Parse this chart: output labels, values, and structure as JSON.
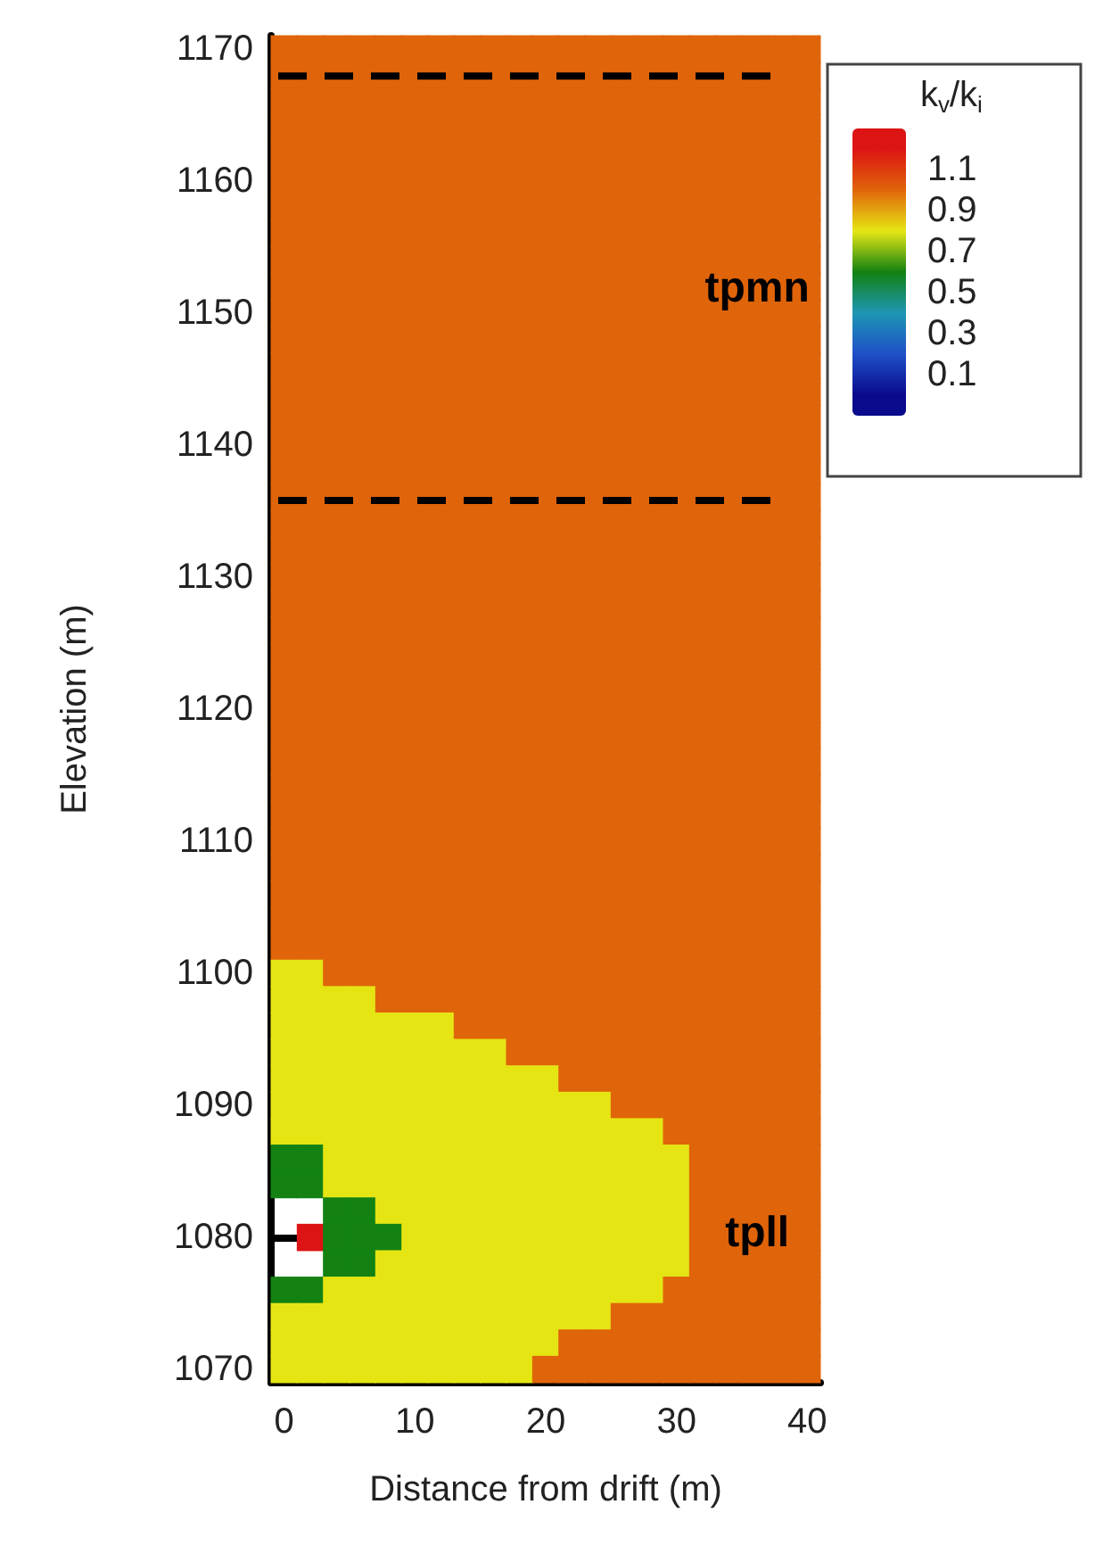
{
  "chart_data": {
    "type": "heatmap",
    "xlabel": "Distance from drift (m)",
    "ylabel": "Elevation (m)",
    "clabel": "k$_{v}$/k$_{i}$",
    "categories": [
      "0",
      null,
      null,
      null,
      null,
      "10",
      null,
      null,
      null,
      null,
      "20",
      null,
      null,
      null,
      null,
      "30",
      null,
      null,
      null,
      null,
      "40"
    ],
    "y_categories": [
      "1170",
      null,
      null,
      null,
      null,
      "1160",
      null,
      null,
      null,
      null,
      "1150",
      null,
      null,
      null,
      null,
      "1140",
      null,
      null,
      null,
      null,
      "1130",
      null,
      null,
      null,
      null,
      "1120",
      null,
      null,
      null,
      null,
      "1110",
      null,
      null,
      null,
      null,
      "1100",
      null,
      null,
      null,
      null,
      "1090",
      null,
      null,
      null,
      null,
      "1080",
      null,
      null,
      null,
      null,
      "1070"
    ],
    "cticks": [
      0.1,
      0.3,
      0.5,
      0.7,
      0.9,
      1.1
    ],
    "colors": [
      "#0a0a8c",
      "#1e50c8",
      "#1e96b4",
      "#128212",
      "#e6e614",
      "#e0640a",
      "#dc1414"
    ],
    "cells": [
      [
        1,
        1,
        1,
        1,
        1,
        1,
        1,
        1,
        1,
        1,
        1,
        1,
        1,
        1,
        1,
        1,
        1,
        1,
        1,
        1,
        1
      ],
      [
        1,
        1,
        1,
        1,
        1,
        1,
        1,
        1,
        1,
        1,
        1,
        1,
        1,
        1,
        1,
        1,
        1,
        1,
        1,
        1,
        1
      ],
      [
        1,
        1,
        1,
        1,
        1,
        1,
        1,
        1,
        1,
        1,
        1,
        1,
        1,
        1,
        1,
        1,
        1,
        1,
        1,
        1,
        1
      ],
      [
        1,
        1,
        1,
        1,
        1,
        1,
        1,
        1,
        1,
        1,
        1,
        1,
        1,
        1,
        1,
        1,
        1,
        1,
        1,
        1,
        1
      ],
      [
        1,
        1,
        1,
        1,
        1,
        1,
        1,
        1,
        1,
        1,
        1,
        1,
        1,
        1,
        1,
        1,
        1,
        1,
        1,
        1,
        1
      ],
      [
        1,
        1,
        1,
        1,
        1,
        1,
        1,
        1,
        1,
        1,
        1,
        1,
        1,
        1,
        1,
        1,
        1,
        1,
        1,
        1,
        1
      ],
      [
        1,
        1,
        1,
        1,
        1,
        1,
        1,
        1,
        1,
        1,
        1,
        1,
        1,
        1,
        1,
        1,
        1,
        1,
        1,
        1,
        1
      ],
      [
        1,
        1,
        1,
        1,
        1,
        1,
        1,
        1,
        1,
        1,
        1,
        1,
        1,
        1,
        1,
        1,
        1,
        1,
        1,
        1,
        1
      ],
      [
        1,
        1,
        1,
        1,
        1,
        1,
        1,
        1,
        1,
        1,
        1,
        1,
        1,
        1,
        1,
        1,
        1,
        1,
        1,
        1,
        1
      ],
      [
        1,
        1,
        1,
        1,
        1,
        1,
        1,
        1,
        1,
        1,
        1,
        1,
        1,
        1,
        1,
        1,
        1,
        1,
        1,
        1,
        1
      ],
      [
        1,
        1,
        1,
        1,
        1,
        1,
        1,
        1,
        1,
        1,
        1,
        1,
        1,
        1,
        1,
        1,
        1,
        1,
        1,
        1,
        1
      ],
      [
        1,
        1,
        1,
        1,
        1,
        1,
        1,
        1,
        1,
        1,
        1,
        1,
        1,
        1,
        1,
        1,
        1,
        1,
        1,
        1,
        1
      ],
      [
        1,
        1,
        1,
        1,
        1,
        1,
        1,
        1,
        1,
        1,
        1,
        1,
        1,
        1,
        1,
        1,
        1,
        1,
        1,
        1,
        1
      ],
      [
        1,
        1,
        1,
        1,
        1,
        1,
        1,
        1,
        1,
        1,
        1,
        1,
        1,
        1,
        1,
        1,
        1,
        1,
        1,
        1,
        1
      ],
      [
        1,
        1,
        1,
        1,
        1,
        1,
        1,
        1,
        1,
        1,
        1,
        1,
        1,
        1,
        1,
        1,
        1,
        1,
        1,
        1,
        1
      ],
      [
        1,
        1,
        1,
        1,
        1,
        1,
        1,
        1,
        1,
        1,
        1,
        1,
        1,
        1,
        1,
        1,
        1,
        1,
        1,
        1,
        1
      ],
      [
        1,
        1,
        1,
        1,
        1,
        1,
        1,
        1,
        1,
        1,
        1,
        1,
        1,
        1,
        1,
        1,
        1,
        1,
        1,
        1,
        1
      ],
      [
        1,
        1,
        1,
        1,
        1,
        1,
        1,
        1,
        1,
        1,
        1,
        1,
        1,
        1,
        1,
        1,
        1,
        1,
        1,
        1,
        1
      ],
      [
        1,
        1,
        1,
        1,
        1,
        1,
        1,
        1,
        1,
        1,
        1,
        1,
        1,
        1,
        1,
        1,
        1,
        1,
        1,
        1,
        1
      ],
      [
        1,
        1,
        1,
        1,
        1,
        1,
        1,
        1,
        1,
        1,
        1,
        1,
        1,
        1,
        1,
        1,
        1,
        1,
        1,
        1,
        1
      ],
      [
        1,
        1,
        1,
        1,
        1,
        1,
        1,
        1,
        1,
        1,
        1,
        1,
        1,
        1,
        1,
        1,
        1,
        1,
        1,
        1,
        1
      ],
      [
        1,
        1,
        1,
        1,
        1,
        1,
        1,
        1,
        1,
        1,
        1,
        1,
        1,
        1,
        1,
        1,
        1,
        1,
        1,
        1,
        1
      ],
      [
        1,
        1,
        1,
        1,
        1,
        1,
        1,
        1,
        1,
        1,
        1,
        1,
        1,
        1,
        1,
        1,
        1,
        1,
        1,
        1,
        1
      ],
      [
        1,
        1,
        1,
        1,
        1,
        1,
        1,
        1,
        1,
        1,
        1,
        1,
        1,
        1,
        1,
        1,
        1,
        1,
        1,
        1,
        1
      ],
      [
        1,
        1,
        1,
        1,
        1,
        1,
        1,
        1,
        1,
        1,
        1,
        1,
        1,
        1,
        1,
        1,
        1,
        1,
        1,
        1,
        1
      ],
      [
        1,
        1,
        1,
        1,
        1,
        1,
        1,
        1,
        1,
        1,
        1,
        1,
        1,
        1,
        1,
        1,
        1,
        1,
        1,
        1,
        1
      ],
      [
        1,
        1,
        1,
        1,
        1,
        1,
        1,
        1,
        1,
        1,
        1,
        1,
        1,
        1,
        1,
        1,
        1,
        1,
        1,
        1,
        1
      ],
      [
        1,
        1,
        1,
        1,
        1,
        1,
        1,
        1,
        1,
        1,
        1,
        1,
        1,
        1,
        1,
        1,
        1,
        1,
        1,
        1,
        1
      ],
      [
        1,
        1,
        1,
        1,
        1,
        1,
        1,
        1,
        1,
        1,
        1,
        1,
        1,
        1,
        1,
        1,
        1,
        1,
        1,
        1,
        1
      ],
      [
        1,
        1,
        1,
        1,
        1,
        1,
        1,
        1,
        1,
        1,
        1,
        1,
        1,
        1,
        1,
        1,
        1,
        1,
        1,
        1,
        1
      ],
      [
        1,
        1,
        1,
        1,
        1,
        1,
        1,
        1,
        1,
        1,
        1,
        1,
        1,
        1,
        1,
        1,
        1,
        1,
        1,
        1,
        1
      ],
      [
        1,
        1,
        1,
        1,
        1,
        1,
        1,
        1,
        1,
        1,
        1,
        1,
        1,
        1,
        1,
        1,
        1,
        1,
        1,
        1,
        1
      ],
      [
        1,
        1,
        1,
        1,
        1,
        1,
        1,
        1,
        1,
        1,
        1,
        1,
        1,
        1,
        1,
        1,
        1,
        1,
        1,
        1,
        1
      ],
      [
        1,
        1,
        1,
        1,
        1,
        1,
        1,
        1,
        1,
        1,
        1,
        1,
        1,
        1,
        1,
        1,
        1,
        1,
        1,
        1,
        1
      ],
      [
        1,
        1,
        1,
        1,
        1,
        1,
        1,
        1,
        1,
        1,
        1,
        1,
        1,
        1,
        1,
        1,
        1,
        1,
        1,
        1,
        1
      ],
      [
        0.8,
        0.8,
        1,
        1,
        1,
        1,
        1,
        1,
        1,
        1,
        1,
        1,
        1,
        1,
        1,
        1,
        1,
        1,
        1,
        1,
        1
      ],
      [
        0.8,
        0.8,
        0.8,
        0.8,
        1,
        1,
        1,
        1,
        1,
        1,
        1,
        1,
        1,
        1,
        1,
        1,
        1,
        1,
        1,
        1,
        1
      ],
      [
        0.8,
        0.8,
        0.8,
        0.8,
        0.8,
        0.8,
        0.8,
        1,
        1,
        1,
        1,
        1,
        1,
        1,
        1,
        1,
        1,
        1,
        1,
        1,
        1
      ],
      [
        0.8,
        0.8,
        0.8,
        0.8,
        0.8,
        0.8,
        0.8,
        0.8,
        0.8,
        1,
        1,
        1,
        1,
        1,
        1,
        1,
        1,
        1,
        1,
        1,
        1
      ],
      [
        0.8,
        0.8,
        0.8,
        0.8,
        0.8,
        0.8,
        0.8,
        0.8,
        0.8,
        0.8,
        0.8,
        1,
        1,
        1,
        1,
        1,
        1,
        1,
        1,
        1,
        1
      ],
      [
        0.8,
        0.8,
        0.8,
        0.8,
        0.8,
        0.8,
        0.8,
        0.8,
        0.8,
        0.8,
        0.8,
        0.8,
        0.8,
        1,
        1,
        1,
        1,
        1,
        1,
        1,
        1
      ],
      [
        0.8,
        0.8,
        0.8,
        0.8,
        0.8,
        0.8,
        0.8,
        0.8,
        0.8,
        0.8,
        0.8,
        0.8,
        0.8,
        0.8,
        0.8,
        1,
        1,
        1,
        1,
        1,
        1
      ],
      [
        0.6,
        0.6,
        0.8,
        0.8,
        0.8,
        0.8,
        0.8,
        0.8,
        0.8,
        0.8,
        0.8,
        0.8,
        0.8,
        0.8,
        0.8,
        0.8,
        1,
        1,
        1,
        1,
        1
      ],
      [
        0.6,
        0.6,
        0.8,
        0.8,
        0.8,
        0.8,
        0.8,
        0.8,
        0.8,
        0.8,
        0.8,
        0.8,
        0.8,
        0.8,
        0.8,
        0.8,
        1,
        1,
        1,
        1,
        1
      ],
      [
        null,
        null,
        0.6,
        0.6,
        0.8,
        0.8,
        0.8,
        0.8,
        0.8,
        0.8,
        0.8,
        0.8,
        0.8,
        0.8,
        0.8,
        0.8,
        1,
        1,
        1,
        1,
        1
      ],
      [
        null,
        1.2,
        0.6,
        0.6,
        0.6,
        0.8,
        0.8,
        0.8,
        0.8,
        0.8,
        0.8,
        0.8,
        0.8,
        0.8,
        0.8,
        0.8,
        1,
        1,
        1,
        1,
        1
      ],
      [
        null,
        null,
        0.6,
        0.6,
        0.8,
        0.8,
        0.8,
        0.8,
        0.8,
        0.8,
        0.8,
        0.8,
        0.8,
        0.8,
        0.8,
        0.8,
        1,
        1,
        1,
        1,
        1
      ],
      [
        0.6,
        0.6,
        0.8,
        0.8,
        0.8,
        0.8,
        0.8,
        0.8,
        0.8,
        0.8,
        0.8,
        0.8,
        0.8,
        0.8,
        0.8,
        1,
        1,
        1,
        1,
        1,
        1
      ],
      [
        0.8,
        0.8,
        0.8,
        0.8,
        0.8,
        0.8,
        0.8,
        0.8,
        0.8,
        0.8,
        0.8,
        0.8,
        0.8,
        1,
        1,
        1,
        1,
        1,
        1,
        1,
        1
      ],
      [
        0.8,
        0.8,
        0.8,
        0.8,
        0.8,
        0.8,
        0.8,
        0.8,
        0.8,
        0.8,
        0.8,
        1,
        1,
        1,
        1,
        1,
        1,
        1,
        1,
        1,
        1
      ],
      [
        0.8,
        0.8,
        0.8,
        0.8,
        0.8,
        0.8,
        0.8,
        0.8,
        0.8,
        0.8,
        1,
        1,
        1,
        1,
        1,
        1,
        1,
        1,
        1,
        1,
        1
      ]
    ],
    "annotations": [
      "tpmn",
      "tpll"
    ],
    "clim": [
      -0.1,
      1.3
    ],
    "grid": false
  }
}
